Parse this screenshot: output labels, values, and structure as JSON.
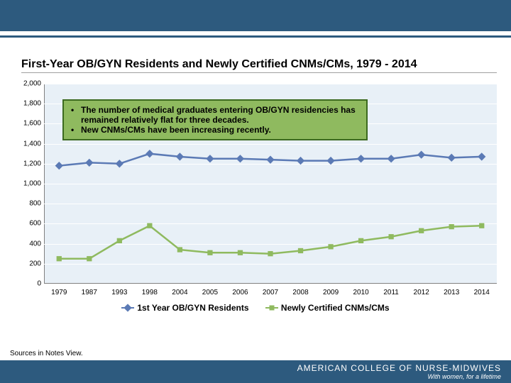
{
  "title": "First-Year OB/GYN Residents and Newly Certified CNMs/CMs, 1979 - 2014",
  "chart": {
    "type": "line",
    "background_color": "#e8f0f7",
    "grid_color": "#ffffff",
    "ylim": [
      0,
      2000
    ],
    "ytick_step": 200,
    "yticks": [
      "0",
      "200",
      "400",
      "600",
      "800",
      "1,000",
      "1,200",
      "1,400",
      "1,600",
      "1,800",
      "2,000"
    ],
    "categories": [
      "1979",
      "1987",
      "1993",
      "1998",
      "2004",
      "2005",
      "2006",
      "2007",
      "2008",
      "2009",
      "2010",
      "2011",
      "2012",
      "2013",
      "2014"
    ],
    "series": [
      {
        "name": "1st Year OB/GYN Residents",
        "color": "#5b7ab5",
        "marker": "diamond",
        "values": [
          1180,
          1210,
          1200,
          1300,
          1270,
          1250,
          1250,
          1240,
          1230,
          1230,
          1250,
          1250,
          1290,
          1260,
          1270
        ]
      },
      {
        "name": "Newly Certified CNMs/CMs",
        "color": "#8fba5f",
        "marker": "square",
        "values": [
          250,
          250,
          430,
          580,
          340,
          310,
          310,
          300,
          330,
          370,
          430,
          470,
          530,
          570,
          580
        ]
      }
    ],
    "line_width": 2.5,
    "marker_size": 8
  },
  "callout": {
    "bullets": [
      "The number of medical graduates entering OB/GYN residencies has remained relatively flat for three decades.",
      "New CNMs/CMs have been increasing recently."
    ],
    "background_color": "#8fba5f",
    "border_color": "#3c6a1f"
  },
  "legend": {
    "items": [
      "1st Year OB/GYN Residents",
      "Newly Certified CNMs/CMs"
    ]
  },
  "sources": "Sources in Notes View.",
  "footer": {
    "org": "AMERICAN COLLEGE OF NURSE-MIDWIVES",
    "tag": "With women, for a lifetime"
  }
}
